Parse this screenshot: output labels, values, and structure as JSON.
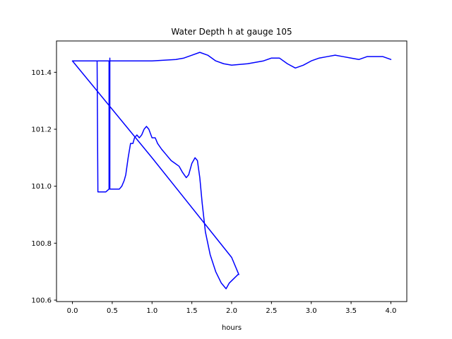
{
  "chart_data": {
    "type": "line",
    "title": "Water Depth h at gauge 105",
    "xlabel": "hours",
    "ylabel": "",
    "xlim": [
      -0.2,
      4.2
    ],
    "ylim": [
      100.595,
      101.51
    ],
    "xticks": [
      0.0,
      0.5,
      1.0,
      1.5,
      2.0,
      2.5,
      3.0,
      3.5,
      4.0
    ],
    "xtick_labels": [
      "0.0",
      "0.5",
      "1.0",
      "1.5",
      "2.0",
      "2.5",
      "3.0",
      "3.5",
      "4.0"
    ],
    "yticks": [
      100.6,
      100.8,
      101.0,
      101.2,
      101.4
    ],
    "ytick_labels": [
      "100.6",
      "100.8",
      "101.0",
      "101.2",
      "101.4"
    ],
    "grid": false,
    "series": [
      {
        "color": "#0000ff",
        "x": [
          2.08,
          1.97,
          1.93,
          1.87,
          1.8,
          1.73,
          1.67,
          1.63,
          1.6,
          1.57,
          1.54,
          1.5,
          1.46,
          1.43,
          1.38,
          1.34,
          1.29,
          1.24,
          1.18,
          1.12,
          1.07,
          1.04,
          1.0,
          0.96,
          0.93,
          0.9,
          0.87,
          0.84,
          0.81,
          0.78,
          0.76,
          0.73,
          0.7,
          0.67,
          0.65,
          0.62,
          0.59,
          0.55,
          0.51,
          0.47,
          0.47,
          0.47,
          0.47,
          0.46,
          0.46,
          0.46,
          0.42,
          0.39,
          0.36,
          0.32,
          0.31,
          0.3,
          0.29,
          0.28,
          0.2,
          0.1,
          0.0,
          1.0,
          2.0,
          2.09
        ],
        "y": [
          100.69,
          100.66,
          100.64,
          100.66,
          100.7,
          100.76,
          100.84,
          100.94,
          101.03,
          101.09,
          101.1,
          101.08,
          101.04,
          101.03,
          101.05,
          101.07,
          101.08,
          101.09,
          101.11,
          101.13,
          101.15,
          101.17,
          101.17,
          101.2,
          101.21,
          101.2,
          101.18,
          101.17,
          101.18,
          101.17,
          101.15,
          101.15,
          101.1,
          101.04,
          101.02,
          101.0,
          100.99,
          100.99,
          100.99,
          100.99,
          101.45,
          100.99,
          101.44,
          101.44,
          101.0,
          100.99,
          100.98,
          100.98,
          100.98,
          100.98,
          101.44,
          101.44,
          101.44,
          101.44,
          101.44,
          101.44,
          101.44,
          101.1,
          100.75,
          100.69
        ]
      },
      {
        "color": "#0000ff",
        "x": [
          0.0,
          0.4,
          0.6,
          1.0,
          1.3,
          1.4,
          1.5,
          1.6,
          1.7,
          1.8,
          1.9,
          2.0,
          2.2,
          2.4,
          2.5,
          2.6,
          2.7,
          2.8,
          2.9,
          3.0,
          3.1,
          3.2,
          3.3,
          3.4,
          3.5,
          3.6,
          3.7,
          3.8,
          3.9,
          4.0
        ],
        "y": [
          101.44,
          101.44,
          101.44,
          101.44,
          101.445,
          101.45,
          101.46,
          101.47,
          101.46,
          101.44,
          101.43,
          101.425,
          101.43,
          101.44,
          101.45,
          101.45,
          101.43,
          101.415,
          101.425,
          101.44,
          101.45,
          101.455,
          101.46,
          101.455,
          101.45,
          101.445,
          101.455,
          101.455,
          101.455,
          101.445
        ]
      }
    ]
  }
}
